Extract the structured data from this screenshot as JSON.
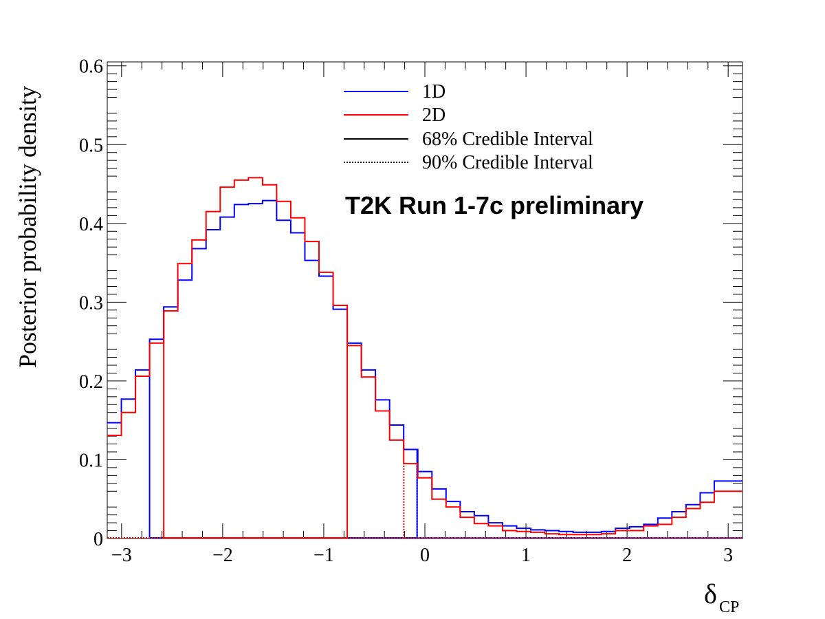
{
  "chart_data": {
    "type": "step-histogram",
    "xlabel": "δ",
    "xlabel_sub": "CP",
    "ylabel": "Posterior probability density",
    "annotation": "T2K Run 1-7c preliminary",
    "xlim": [
      -3.14159,
      3.14159
    ],
    "ylim": [
      0,
      0.605
    ],
    "xticks": [
      -3,
      -2,
      -1,
      0,
      1,
      2,
      3
    ],
    "xtick_labels": [
      "−3",
      "−2",
      "−1",
      "0",
      "1",
      "2",
      "3"
    ],
    "yticks": [
      0,
      0.1,
      0.2,
      0.3,
      0.4,
      0.5,
      0.6
    ],
    "ytick_labels": [
      "0",
      "0.1",
      "0.2",
      "0.3",
      "0.4",
      "0.5",
      "0.6"
    ],
    "bins": 45,
    "legend": [
      {
        "label": "1D",
        "color": "#0000ff",
        "style": "solid"
      },
      {
        "label": "2D",
        "color": "#ff0000",
        "style": "solid"
      },
      {
        "label": "68% Credible Interval",
        "color": "#000000",
        "style": "solid"
      },
      {
        "label": "90% Credible Interval",
        "color": "#000000",
        "style": "dotted"
      }
    ],
    "series": [
      {
        "name": "1D",
        "color": "#0000ff",
        "values": [
          0.147,
          0.177,
          0.214,
          0.253,
          0.294,
          0.328,
          0.368,
          0.392,
          0.408,
          0.424,
          0.425,
          0.429,
          0.404,
          0.388,
          0.353,
          0.333,
          0.291,
          0.248,
          0.214,
          0.176,
          0.144,
          0.113,
          0.085,
          0.063,
          0.047,
          0.034,
          0.029,
          0.02,
          0.016,
          0.013,
          0.011,
          0.01,
          0.009,
          0.008,
          0.008,
          0.009,
          0.013,
          0.015,
          0.018,
          0.026,
          0.034,
          0.043,
          0.058,
          0.073,
          0.073
        ],
        "ci68": [
          [
            -2.723,
            -0.077
          ]
        ],
        "ci90": [
          [
            -0.077,
            -0.077
          ]
        ]
      },
      {
        "name": "2D",
        "color": "#ff0000",
        "values": [
          0.131,
          0.16,
          0.206,
          0.248,
          0.289,
          0.349,
          0.379,
          0.415,
          0.446,
          0.455,
          0.458,
          0.449,
          0.428,
          0.407,
          0.377,
          0.338,
          0.296,
          0.245,
          0.205,
          0.162,
          0.125,
          0.095,
          0.077,
          0.05,
          0.04,
          0.027,
          0.019,
          0.016,
          0.01,
          0.009,
          0.008,
          0.006,
          0.005,
          0.005,
          0.005,
          0.006,
          0.01,
          0.01,
          0.016,
          0.018,
          0.027,
          0.038,
          0.046,
          0.06,
          0.06
        ],
        "ci68": [
          [
            -2.583,
            -0.768
          ]
        ],
        "ci90": [
          [
            -0.208,
            -0.208
          ]
        ]
      }
    ]
  }
}
